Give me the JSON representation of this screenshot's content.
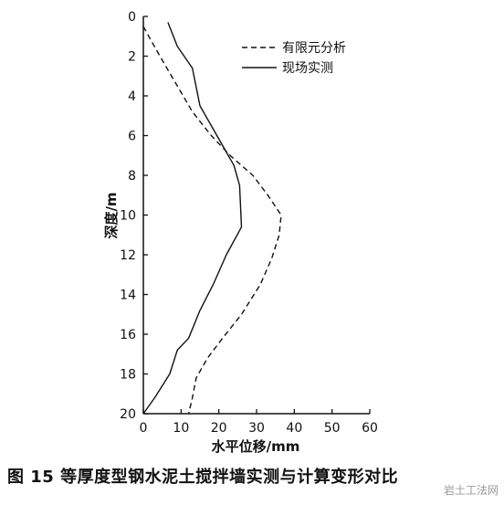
{
  "caption": "图 15  等厚度型钢水泥土搅拌墙实测与计算变形对比",
  "watermark": "岩土工法网",
  "chart_data": {
    "type": "line",
    "xlabel": "水平位移/mm",
    "ylabel": "深度/m",
    "xlim": [
      0,
      60
    ],
    "ylim": [
      0,
      20
    ],
    "y_inverted": true,
    "x_axis_position": "top",
    "x_ticks": [
      0,
      10,
      20,
      30,
      40,
      50,
      60
    ],
    "y_ticks": [
      0,
      2,
      4,
      6,
      8,
      10,
      12,
      14,
      16,
      18,
      20
    ],
    "grid": false,
    "legend_position": "top-right",
    "series": [
      {
        "name": "有限元分析",
        "style": "dashed",
        "color": "#111111",
        "points": [
          [
            0,
            0.5
          ],
          [
            2,
            1.2
          ],
          [
            5,
            2.2
          ],
          [
            9,
            3.5
          ],
          [
            13,
            4.8
          ],
          [
            18,
            6
          ],
          [
            23,
            7
          ],
          [
            29,
            8
          ],
          [
            33,
            9
          ],
          [
            36.5,
            10
          ],
          [
            36,
            11
          ],
          [
            34,
            12.2
          ],
          [
            31,
            13.5
          ],
          [
            26,
            15
          ],
          [
            21,
            16.2
          ],
          [
            17,
            17.2
          ],
          [
            14,
            18.2
          ],
          [
            13,
            19.2
          ],
          [
            12,
            20
          ]
        ]
      },
      {
        "name": "现场实测",
        "style": "solid",
        "color": "#111111",
        "points": [
          [
            6.5,
            0.3
          ],
          [
            9,
            1.5
          ],
          [
            13,
            2.6
          ],
          [
            15,
            4.5
          ],
          [
            18,
            5.5
          ],
          [
            21,
            6.5
          ],
          [
            24,
            7.5
          ],
          [
            25.5,
            8.5
          ],
          [
            26,
            10.6
          ],
          [
            22,
            12
          ],
          [
            18.5,
            13.5
          ],
          [
            15,
            14.8
          ],
          [
            12,
            16.2
          ],
          [
            9,
            16.8
          ],
          [
            7,
            18
          ],
          [
            3,
            19.2
          ],
          [
            0,
            20
          ]
        ]
      }
    ]
  }
}
